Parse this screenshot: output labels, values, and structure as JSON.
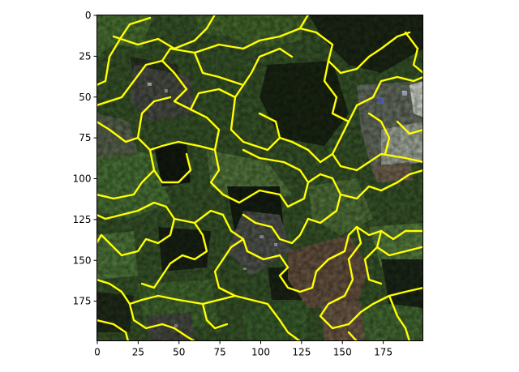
{
  "image": {
    "description_tag": "satellite-superpixel-overlay",
    "boundary_color": "#ffff00"
  },
  "axes": {
    "xlim": [
      0,
      199
    ],
    "ylim": [
      199,
      0
    ],
    "xticks": [
      {
        "value": 0,
        "label": "0"
      },
      {
        "value": 25,
        "label": "25"
      },
      {
        "value": 50,
        "label": "50"
      },
      {
        "value": 75,
        "label": "75"
      },
      {
        "value": 100,
        "label": "100"
      },
      {
        "value": 125,
        "label": "125"
      },
      {
        "value": 150,
        "label": "150"
      },
      {
        "value": 175,
        "label": "175"
      }
    ],
    "yticks": [
      {
        "value": 0,
        "label": "0"
      },
      {
        "value": 25,
        "label": "25"
      },
      {
        "value": 50,
        "label": "50"
      },
      {
        "value": 75,
        "label": "75"
      },
      {
        "value": 100,
        "label": "100"
      },
      {
        "value": 125,
        "label": "125"
      },
      {
        "value": 150,
        "label": "150"
      },
      {
        "value": 175,
        "label": "175"
      }
    ]
  }
}
